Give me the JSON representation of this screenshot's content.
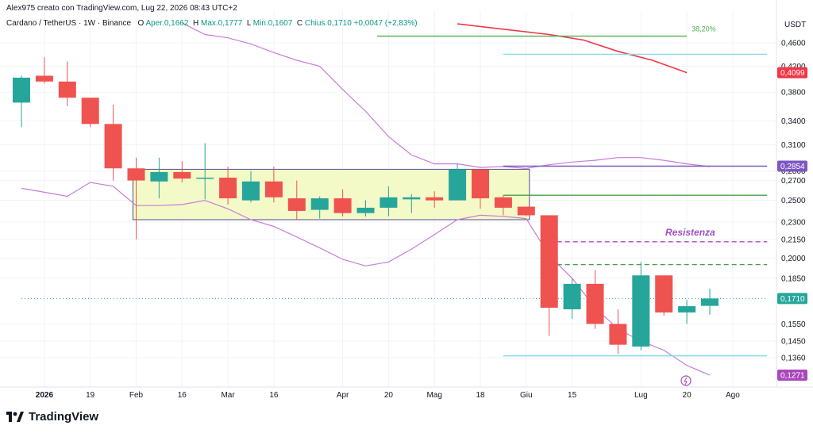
{
  "header": {
    "credit": "Alex975 creato con TradingView.com, Lug 22, 2026 08:43 UTC+2",
    "symbol_line": "Cardano / TetherUS · 1W · Binance",
    "ohlc": {
      "open_label": "O",
      "open": "Aper.0,1662",
      "high_label": "H",
      "high": "Max.0,1777",
      "low_label": "L",
      "low": "Min.0,1607",
      "close_label": "C",
      "close": "Chius.0,1710",
      "change": "+0,0047 (+2,83%)"
    }
  },
  "brand": {
    "name": "TradingView",
    "icon": "tradingview-logo-icon"
  },
  "chart_data": {
    "type": "candlestick",
    "scale": "log",
    "quote_currency": "USDT",
    "y_ticks": [
      "0,4600",
      "0,4200",
      "0,3800",
      "0,3400",
      "0,3100",
      "0,2800",
      "0,2700",
      "0,2500",
      "0,2300",
      "0,2150",
      "0,2000",
      "0,1850",
      "0,1550",
      "0,1450",
      "0,1360"
    ],
    "x_ticks": [
      "2026",
      "19",
      "Feb",
      "16",
      "Mar",
      "16",
      "Apr",
      "20",
      "Mag",
      "18",
      "Giu",
      "15",
      "Lug",
      "20",
      "Ago"
    ],
    "x_tick_slots": [
      1,
      3,
      5,
      7,
      9,
      11,
      14,
      16,
      18,
      20,
      22,
      24,
      27,
      29,
      31
    ],
    "candles": [
      {
        "o": 0.365,
        "h": 0.405,
        "l": 0.332,
        "c": 0.402
      },
      {
        "o": 0.405,
        "h": 0.435,
        "l": 0.393,
        "c": 0.396
      },
      {
        "o": 0.396,
        "h": 0.428,
        "l": 0.36,
        "c": 0.372
      },
      {
        "o": 0.372,
        "h": 0.372,
        "l": 0.332,
        "c": 0.336
      },
      {
        "o": 0.336,
        "h": 0.362,
        "l": 0.27,
        "c": 0.283
      },
      {
        "o": 0.283,
        "h": 0.295,
        "l": 0.215,
        "c": 0.27
      },
      {
        "o": 0.269,
        "h": 0.295,
        "l": 0.252,
        "c": 0.279
      },
      {
        "o": 0.279,
        "h": 0.291,
        "l": 0.268,
        "c": 0.272
      },
      {
        "o": 0.272,
        "h": 0.312,
        "l": 0.251,
        "c": 0.273
      },
      {
        "o": 0.273,
        "h": 0.285,
        "l": 0.246,
        "c": 0.252
      },
      {
        "o": 0.25,
        "h": 0.28,
        "l": 0.248,
        "c": 0.269
      },
      {
        "o": 0.269,
        "h": 0.285,
        "l": 0.248,
        "c": 0.253
      },
      {
        "o": 0.252,
        "h": 0.27,
        "l": 0.232,
        "c": 0.24
      },
      {
        "o": 0.241,
        "h": 0.254,
        "l": 0.233,
        "c": 0.252
      },
      {
        "o": 0.252,
        "h": 0.261,
        "l": 0.235,
        "c": 0.238
      },
      {
        "o": 0.238,
        "h": 0.25,
        "l": 0.235,
        "c": 0.243
      },
      {
        "o": 0.243,
        "h": 0.264,
        "l": 0.235,
        "c": 0.253
      },
      {
        "o": 0.251,
        "h": 0.256,
        "l": 0.238,
        "c": 0.253
      },
      {
        "o": 0.253,
        "h": 0.259,
        "l": 0.243,
        "c": 0.25
      },
      {
        "o": 0.25,
        "h": 0.288,
        "l": 0.25,
        "c": 0.282
      },
      {
        "o": 0.282,
        "h": 0.282,
        "l": 0.242,
        "c": 0.252
      },
      {
        "o": 0.253,
        "h": 0.255,
        "l": 0.236,
        "c": 0.243
      },
      {
        "o": 0.244,
        "h": 0.244,
        "l": 0.235,
        "c": 0.236
      },
      {
        "o": 0.236,
        "h": 0.236,
        "l": 0.148,
        "c": 0.165
      },
      {
        "o": 0.164,
        "h": 0.185,
        "l": 0.158,
        "c": 0.181
      },
      {
        "o": 0.181,
        "h": 0.191,
        "l": 0.152,
        "c": 0.155
      },
      {
        "o": 0.155,
        "h": 0.164,
        "l": 0.138,
        "c": 0.143
      },
      {
        "o": 0.142,
        "h": 0.197,
        "l": 0.14,
        "c": 0.187
      },
      {
        "o": 0.187,
        "h": 0.187,
        "l": 0.16,
        "c": 0.162
      },
      {
        "o": 0.162,
        "h": 0.17,
        "l": 0.155,
        "c": 0.166
      },
      {
        "o": 0.1662,
        "h": 0.1777,
        "l": 0.1607,
        "c": 0.171
      }
    ],
    "bollinger_upper": [
      null,
      null,
      null,
      null,
      null,
      null,
      null,
      0.497,
      0.475,
      0.469,
      0.458,
      0.443,
      0.43,
      0.42,
      0.384,
      0.353,
      0.32,
      0.298,
      0.288,
      0.288,
      0.284,
      0.285,
      0.283,
      0.287,
      0.29,
      0.292,
      0.295,
      0.295,
      0.292,
      0.288,
      0.285
    ],
    "bollinger_lower": [
      0.262,
      0.258,
      0.254,
      0.268,
      0.264,
      0.245,
      0.245,
      0.246,
      0.25,
      0.242,
      0.232,
      0.226,
      0.217,
      0.208,
      0.199,
      0.194,
      0.197,
      0.207,
      0.219,
      0.232,
      0.236,
      0.235,
      0.233,
      0.202,
      0.185,
      0.165,
      0.152,
      0.145,
      0.14,
      0.132,
      0.1271
    ],
    "ema": {
      "color": "#f23645",
      "points": [
        [
          19.0,
          0.495
        ],
        [
          23.0,
          0.475
        ],
        [
          24.5,
          0.465
        ],
        [
          26.0,
          0.445
        ],
        [
          27.5,
          0.43
        ],
        [
          29.0,
          0.4099
        ]
      ]
    },
    "range_box": {
      "from_slot": 5,
      "to_slot": 22,
      "top": 0.282,
      "bottom": 0.232,
      "fill": "#f4f9c8",
      "border": "#4a4e8f"
    },
    "levels": [
      {
        "name": "fib-382",
        "value": 0.472,
        "from_slot": 15.5,
        "to_slot": 29,
        "color": "#4caf50",
        "label": "38,20%"
      },
      {
        "name": "cyan-upper",
        "value": 0.44,
        "from_slot": 21,
        "to_slot": 32.5,
        "color": "#80deea"
      },
      {
        "name": "purple-level",
        "value": 0.2854,
        "from_slot": 21,
        "to_slot": 32.5,
        "color": "#7e57c2"
      },
      {
        "name": "green-level",
        "value": 0.255,
        "from_slot": 21,
        "to_slot": 32.5,
        "color": "#43a047"
      },
      {
        "name": "resistance-dashed",
        "value": 0.213,
        "from_slot": 23,
        "to_slot": 32.5,
        "color": "#ab47bc",
        "dash": true,
        "label": "Resistenza"
      },
      {
        "name": "green-dashed",
        "value": 0.195,
        "from_slot": 23,
        "to_slot": 32.5,
        "color": "#43a047",
        "dash": true
      },
      {
        "name": "cyan-lower",
        "value": 0.137,
        "from_slot": 21,
        "to_slot": 32.5,
        "color": "#80deea"
      },
      {
        "name": "last-price",
        "value": 0.171,
        "from_slot": 0,
        "to_slot": 32.5,
        "color": "#26a69a",
        "dotted": true
      }
    ],
    "price_badges": [
      {
        "value": 0.4099,
        "text": "0,4099",
        "color": "#f23645"
      },
      {
        "value": 0.2854,
        "text": "0,2854",
        "color": "#7e57c2"
      },
      {
        "value": 0.171,
        "text": "0,1710",
        "color": "#26a69a"
      },
      {
        "value": 0.1271,
        "text": "0,1271",
        "color": "#ab47bc"
      }
    ],
    "annotation_label": "Resistenza",
    "colors": {
      "up": "#26a69a",
      "down": "#ef5350",
      "bollinger": "#c77dd8",
      "grid": "#f0f3fa"
    }
  }
}
